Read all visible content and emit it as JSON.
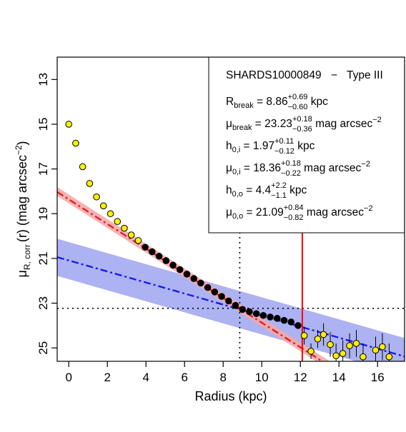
{
  "chart_data": {
    "type": "scatter",
    "xlabel": "Radius (kpc)",
    "ylabel": {
      "main": "μ",
      "sub": "R, corr",
      "tail": "(r) (mag arcsec",
      "sup": "−2",
      "close": ")"
    },
    "xlim": [
      -0.6,
      17.4
    ],
    "ylim": [
      25.6,
      12.0
    ],
    "y_inverted": true,
    "x_ticks": [
      0,
      2,
      4,
      6,
      8,
      10,
      12,
      14,
      16
    ],
    "y_ticks": [
      13,
      15,
      17,
      19,
      21,
      23,
      25
    ],
    "break_radius": 8.86,
    "break_mu": 23.23,
    "red_marker_x": 12.1,
    "colors": {
      "inner_fit": "#e0202a",
      "inner_band": "#f4a7a7",
      "outer_fit": "#1a1aee",
      "outer_band": "#9ea4f0",
      "open_point": "#ffef00",
      "fit_point": "#000000",
      "marker_line": "#ff0000"
    },
    "inner_fit": {
      "mu0": 18.36,
      "mu0_lo": 18.14,
      "mu0_hi": 18.54,
      "h": 1.97
    },
    "outer_fit": {
      "mu0": 21.09,
      "mu0_lo": 20.27,
      "mu0_hi": 21.93,
      "h": 4.4
    },
    "series": [
      {
        "name": "excluded",
        "points": [
          {
            "x": 0.0,
            "y": 15.0
          },
          {
            "x": 0.36,
            "y": 15.85
          },
          {
            "x": 0.72,
            "y": 16.9
          },
          {
            "x": 1.08,
            "y": 17.65
          },
          {
            "x": 1.44,
            "y": 18.25
          },
          {
            "x": 1.8,
            "y": 18.65
          },
          {
            "x": 2.16,
            "y": 19.0
          },
          {
            "x": 2.52,
            "y": 19.35
          },
          {
            "x": 2.88,
            "y": 19.65
          },
          {
            "x": 3.24,
            "y": 19.95
          },
          {
            "x": 3.6,
            "y": 20.2
          },
          {
            "x": 12.2,
            "y": 24.45,
            "err": 0.4
          },
          {
            "x": 12.55,
            "y": 25.15,
            "err": 0.35
          },
          {
            "x": 12.9,
            "y": 24.6,
            "err": 0.4
          },
          {
            "x": 13.2,
            "y": 24.4,
            "err": 0.5
          },
          {
            "x": 13.55,
            "y": 24.85,
            "err": 0.55
          },
          {
            "x": 13.85,
            "y": 25.35,
            "err": 0.55
          },
          {
            "x": 14.2,
            "y": 25.25,
            "err": 0.6
          },
          {
            "x": 14.55,
            "y": 24.9,
            "err": 0.55
          },
          {
            "x": 14.9,
            "y": 24.8,
            "err": 0.6
          },
          {
            "x": 15.25,
            "y": 25.4,
            "err": 0.6
          },
          {
            "x": 15.9,
            "y": 25.1,
            "err": 0.6
          },
          {
            "x": 16.25,
            "y": 24.95,
            "err": 0.6
          },
          {
            "x": 16.6,
            "y": 25.4,
            "err": 0.6
          }
        ]
      },
      {
        "name": "fitted",
        "points": [
          {
            "x": 3.96,
            "y": 20.5
          },
          {
            "x": 4.32,
            "y": 20.7
          },
          {
            "x": 4.68,
            "y": 20.9
          },
          {
            "x": 5.04,
            "y": 21.1
          },
          {
            "x": 5.4,
            "y": 21.3
          },
          {
            "x": 5.76,
            "y": 21.5
          },
          {
            "x": 6.12,
            "y": 21.7
          },
          {
            "x": 6.48,
            "y": 21.9
          },
          {
            "x": 6.84,
            "y": 22.1
          },
          {
            "x": 7.2,
            "y": 22.3
          },
          {
            "x": 7.56,
            "y": 22.5
          },
          {
            "x": 7.92,
            "y": 22.7
          },
          {
            "x": 8.28,
            "y": 22.9
          },
          {
            "x": 8.64,
            "y": 23.1
          },
          {
            "x": 9.0,
            "y": 23.28
          },
          {
            "x": 9.36,
            "y": 23.38
          },
          {
            "x": 9.72,
            "y": 23.47
          },
          {
            "x": 10.08,
            "y": 23.55
          },
          {
            "x": 10.44,
            "y": 23.62
          },
          {
            "x": 10.8,
            "y": 23.68
          },
          {
            "x": 11.16,
            "y": 23.77
          },
          {
            "x": 11.52,
            "y": 23.84
          },
          {
            "x": 11.88,
            "y": 24.0
          }
        ]
      }
    ]
  },
  "legend": {
    "galaxy": "SHARDS10000849",
    "dash": "−",
    "type": "Type III",
    "rows": [
      {
        "sym": "R",
        "sub": "break",
        "eq": " = ",
        "val": "8.86",
        "sup": "+0.69",
        "sub2": "−0.60",
        "unit": " kpc",
        "unit_sup": ""
      },
      {
        "sym": "μ",
        "sub": "break",
        "eq": " = ",
        "val": "23.23",
        "sup": "+0.18",
        "sub2": "−0.36",
        "unit": " mag arcsec",
        "unit_sup": "−2"
      },
      {
        "sym": "h",
        "sub": "0,i",
        "eq": " = ",
        "val": "1.97",
        "sup": "+0.11",
        "sub2": "−0.12",
        "unit": " kpc",
        "unit_sup": ""
      },
      {
        "sym": "μ",
        "sub": "0,i",
        "eq": " = ",
        "val": "18.36",
        "sup": "+0.18",
        "sub2": "−0.22",
        "unit": " mag arcsec",
        "unit_sup": "−2"
      },
      {
        "sym": "h",
        "sub": "0,o",
        "eq": " = ",
        "val": "4.4",
        "sup": "+2.2",
        "sub2": "−1.1",
        "unit": " kpc",
        "unit_sup": ""
      },
      {
        "sym": "μ",
        "sub": "0,o",
        "eq": " = ",
        "val": "21.09",
        "sup": "+0.84",
        "sub2": "−0.82",
        "unit": " mag arcsec",
        "unit_sup": "−2"
      }
    ]
  }
}
